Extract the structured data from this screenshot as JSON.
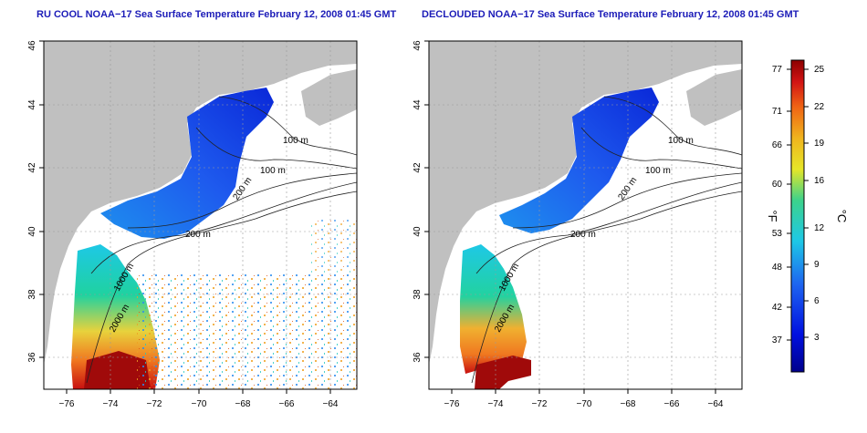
{
  "panels": {
    "left": {
      "title": "RU COOL NOAA−17 Sea Surface Temperature February 12, 2008 01:45 GMT"
    },
    "right": {
      "title": "DECLOUDED NOAA−17 Sea Surface Temperature February 12, 2008 01:45 GMT"
    }
  },
  "map_axes": {
    "lon_ticks": [
      "−76",
      "−74",
      "−72",
      "−70",
      "−68",
      "−66",
      "−64"
    ],
    "lat_ticks": [
      "36",
      "38",
      "40",
      "42",
      "44",
      "46"
    ],
    "lon_range": [
      -77.2,
      -63.0
    ],
    "lat_range": [
      35.0,
      46.0
    ]
  },
  "contour_labels": [
    "100 m",
    "100 m",
    "200 m",
    "200 m",
    "1000 m",
    "2000 m"
  ],
  "colorbar": {
    "fahrenheit_label": "°F",
    "celsius_label": "°C",
    "fahrenheit_ticks": [
      "77",
      "71",
      "66",
      "60",
      "53",
      "48",
      "42",
      "37"
    ],
    "celsius_ticks": [
      "25",
      "22",
      "19",
      "16",
      "12",
      "9",
      "6",
      "3"
    ],
    "range_c": [
      0,
      26
    ]
  },
  "colors": {
    "land": "#c0c0c0",
    "title": "#1c1cb8",
    "cold": "#0010c8",
    "warm": "#b00000"
  }
}
